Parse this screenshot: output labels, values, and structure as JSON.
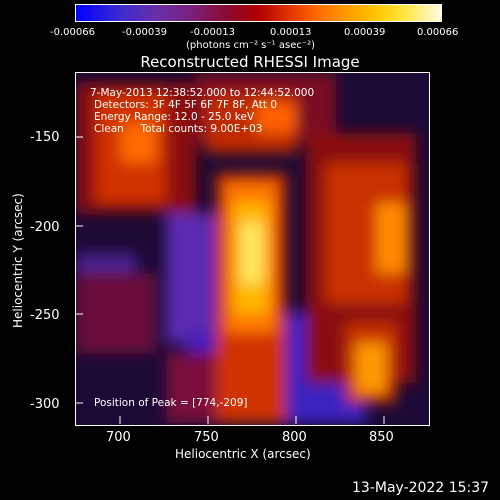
{
  "colorbar": {
    "ticks": [
      "-0.00066",
      "-0.00039",
      "-0.00013",
      "0.00013",
      "0.00039",
      "0.00066"
    ],
    "units": "(photons cm⁻² s⁻¹ asec⁻²)"
  },
  "title": "Reconstructed RHESSI Image",
  "info": {
    "time": "7-May-2013 12:38:52.000 to 12:44:52.000",
    "detectors": "Detectors: 3F 4F 5F 6F 7F 8F, Att 0",
    "energy": "Energy Range: 12.0 - 25.0 keV",
    "clean": "Clean     Total counts: 9.00E+03",
    "peak": "Position of Peak = [774,-209]"
  },
  "axes": {
    "x_label": "Heliocentric X (arcsec)",
    "y_label": "Heliocentric Y (arcsec)",
    "x_ticks": [
      "700",
      "750",
      "800",
      "850"
    ],
    "y_ticks": [
      "-150",
      "-200",
      "-250",
      "-300"
    ]
  },
  "footer": "13-May-2022 15:37"
}
